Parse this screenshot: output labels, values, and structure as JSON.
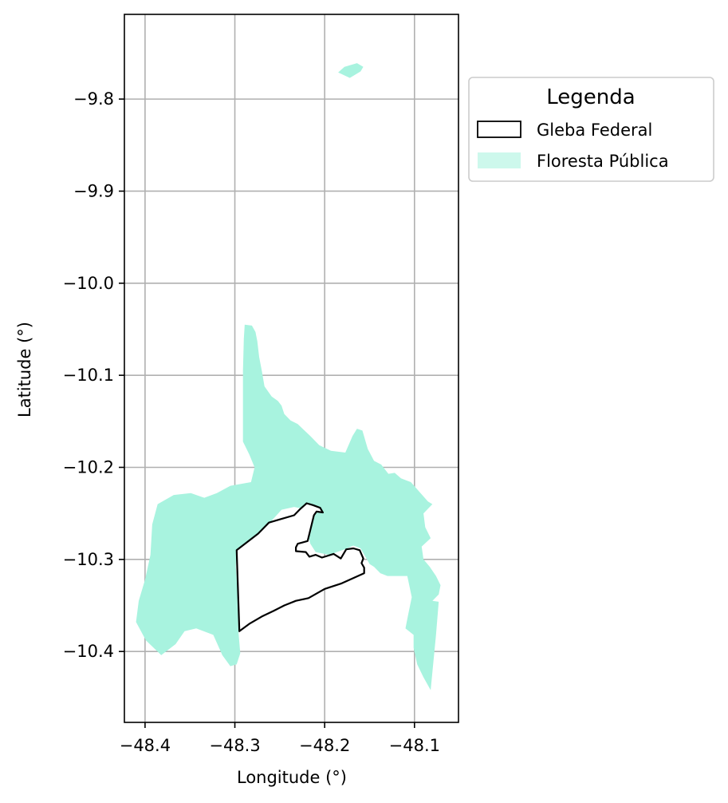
{
  "chart_data": {
    "type": "map",
    "xlabel": "Longitude (°)",
    "ylabel": "Latitude (°)",
    "xlim": [
      -48.423,
      -48.051
    ],
    "ylim": [
      -10.477,
      -9.708
    ],
    "x_ticks": [
      -48.4,
      -48.3,
      -48.2,
      -48.1
    ],
    "x_tick_labels": [
      "−48.4",
      "−48.3",
      "−48.2",
      "−48.1"
    ],
    "y_ticks": [
      -9.8,
      -9.9,
      -10.0,
      -10.1,
      -10.2,
      -10.3,
      -10.4
    ],
    "y_tick_labels": [
      "−9.8",
      "−9.9",
      "−10.0",
      "−10.1",
      "−10.2",
      "−10.3",
      "−10.4"
    ],
    "grid": true,
    "legend": {
      "title": "Legenda",
      "placement": "outside-upper-right",
      "entries": [
        {
          "label": "Gleba Federal",
          "style": "outline",
          "color": "#000000"
        },
        {
          "label": "Floresta Pública",
          "style": "fill",
          "color": "#a8f3df"
        }
      ]
    },
    "layers": [
      {
        "name": "Floresta Pública",
        "color": "#a8f3df",
        "polygons": [
          [
            [
              -48.178,
              -9.765
            ],
            [
              -48.164,
              -9.761
            ],
            [
              -48.157,
              -9.765
            ],
            [
              -48.16,
              -9.77
            ],
            [
              -48.172,
              -9.777
            ],
            [
              -48.185,
              -9.771
            ]
          ],
          [
            [
              -48.289,
              -10.045
            ],
            [
              -48.281,
              -10.046
            ],
            [
              -48.277,
              -10.053
            ],
            [
              -48.275,
              -10.063
            ],
            [
              -48.273,
              -10.08
            ],
            [
              -48.27,
              -10.095
            ],
            [
              -48.267,
              -10.112
            ],
            [
              -48.259,
              -10.123
            ],
            [
              -48.252,
              -10.128
            ],
            [
              -48.248,
              -10.133
            ],
            [
              -48.245,
              -10.142
            ],
            [
              -48.238,
              -10.149
            ],
            [
              -48.23,
              -10.153
            ],
            [
              -48.216,
              -10.166
            ],
            [
              -48.206,
              -10.176
            ],
            [
              -48.193,
              -10.182
            ],
            [
              -48.177,
              -10.184
            ],
            [
              -48.169,
              -10.166
            ],
            [
              -48.164,
              -10.158
            ],
            [
              -48.158,
              -10.16
            ],
            [
              -48.152,
              -10.18
            ],
            [
              -48.145,
              -10.193
            ],
            [
              -48.137,
              -10.197
            ],
            [
              -48.129,
              -10.207
            ],
            [
              -48.122,
              -10.206
            ],
            [
              -48.115,
              -10.212
            ],
            [
              -48.104,
              -10.216
            ],
            [
              -48.095,
              -10.226
            ],
            [
              -48.085,
              -10.237
            ],
            [
              -48.08,
              -10.24
            ],
            [
              -48.09,
              -10.25
            ],
            [
              -48.088,
              -10.265
            ],
            [
              -48.082,
              -10.277
            ],
            [
              -48.092,
              -10.286
            ],
            [
              -48.09,
              -10.3
            ],
            [
              -48.083,
              -10.308
            ],
            [
              -48.076,
              -10.318
            ],
            [
              -48.071,
              -10.328
            ],
            [
              -48.073,
              -10.338
            ],
            [
              -48.08,
              -10.345
            ],
            [
              -48.073,
              -10.346
            ],
            [
              -48.076,
              -10.382
            ],
            [
              -48.082,
              -10.442
            ],
            [
              -48.09,
              -10.428
            ],
            [
              -48.097,
              -10.414
            ],
            [
              -48.101,
              -10.396
            ],
            [
              -48.101,
              -10.382
            ],
            [
              -48.11,
              -10.375
            ],
            [
              -48.107,
              -10.36
            ],
            [
              -48.103,
              -10.341
            ],
            [
              -48.108,
              -10.318
            ],
            [
              -48.118,
              -10.318
            ],
            [
              -48.13,
              -10.318
            ],
            [
              -48.138,
              -10.315
            ],
            [
              -48.145,
              -10.308
            ],
            [
              -48.15,
              -10.305
            ],
            [
              -48.16,
              -10.288
            ],
            [
              -48.168,
              -10.285
            ],
            [
              -48.178,
              -10.289
            ],
            [
              -48.195,
              -10.295
            ],
            [
              -48.21,
              -10.292
            ],
            [
              -48.216,
              -10.283
            ],
            [
              -48.221,
              -10.265
            ],
            [
              -48.224,
              -10.245
            ],
            [
              -48.234,
              -10.243
            ],
            [
              -48.248,
              -10.246
            ],
            [
              -48.26,
              -10.259
            ],
            [
              -48.268,
              -10.268
            ],
            [
              -48.286,
              -10.282
            ],
            [
              -48.298,
              -10.29
            ],
            [
              -48.299,
              -10.308
            ],
            [
              -48.297,
              -10.334
            ],
            [
              -48.296,
              -10.378
            ],
            [
              -48.294,
              -10.402
            ],
            [
              -48.298,
              -10.414
            ],
            [
              -48.305,
              -10.416
            ],
            [
              -48.314,
              -10.404
            ],
            [
              -48.324,
              -10.382
            ],
            [
              -48.343,
              -10.375
            ],
            [
              -48.356,
              -10.378
            ],
            [
              -48.366,
              -10.392
            ],
            [
              -48.382,
              -10.404
            ],
            [
              -48.399,
              -10.388
            ],
            [
              -48.41,
              -10.368
            ],
            [
              -48.407,
              -10.345
            ],
            [
              -48.4,
              -10.322
            ],
            [
              -48.394,
              -10.295
            ],
            [
              -48.392,
              -10.262
            ],
            [
              -48.386,
              -10.24
            ],
            [
              -48.368,
              -10.23
            ],
            [
              -48.349,
              -10.228
            ],
            [
              -48.334,
              -10.233
            ],
            [
              -48.32,
              -10.228
            ],
            [
              -48.305,
              -10.22
            ],
            [
              -48.282,
              -10.216
            ],
            [
              -48.278,
              -10.2
            ],
            [
              -48.284,
              -10.186
            ],
            [
              -48.291,
              -10.172
            ],
            [
              -48.291,
              -10.138
            ],
            [
              -48.291,
              -10.095
            ],
            [
              -48.29,
              -10.06
            ]
          ]
        ]
      },
      {
        "name": "Gleba Federal",
        "color": "#000000",
        "polygons": [
          [
            [
              -48.298,
              -10.29
            ],
            [
              -48.286,
              -10.281
            ],
            [
              -48.274,
              -10.272
            ],
            [
              -48.262,
              -10.26
            ],
            [
              -48.248,
              -10.256
            ],
            [
              -48.234,
              -10.252
            ],
            [
              -48.227,
              -10.245
            ],
            [
              -48.22,
              -10.239
            ],
            [
              -48.213,
              -10.241
            ],
            [
              -48.205,
              -10.244
            ],
            [
              -48.202,
              -10.249
            ],
            [
              -48.209,
              -10.248
            ],
            [
              -48.212,
              -10.252
            ],
            [
              -48.216,
              -10.268
            ],
            [
              -48.219,
              -10.28
            ],
            [
              -48.23,
              -10.283
            ],
            [
              -48.232,
              -10.287
            ],
            [
              -48.232,
              -10.291
            ],
            [
              -48.221,
              -10.292
            ],
            [
              -48.217,
              -10.297
            ],
            [
              -48.21,
              -10.295
            ],
            [
              -48.203,
              -10.298
            ],
            [
              -48.19,
              -10.294
            ],
            [
              -48.182,
              -10.299
            ],
            [
              -48.176,
              -10.289
            ],
            [
              -48.168,
              -10.288
            ],
            [
              -48.161,
              -10.29
            ],
            [
              -48.157,
              -10.299
            ],
            [
              -48.159,
              -10.304
            ],
            [
              -48.156,
              -10.309
            ],
            [
              -48.156,
              -10.315
            ],
            [
              -48.181,
              -10.326
            ],
            [
              -48.2,
              -10.332
            ],
            [
              -48.218,
              -10.342
            ],
            [
              -48.232,
              -10.345
            ],
            [
              -48.245,
              -10.35
            ],
            [
              -48.257,
              -10.356
            ],
            [
              -48.27,
              -10.362
            ],
            [
              -48.284,
              -10.37
            ],
            [
              -48.295,
              -10.378
            ]
          ]
        ]
      }
    ]
  }
}
